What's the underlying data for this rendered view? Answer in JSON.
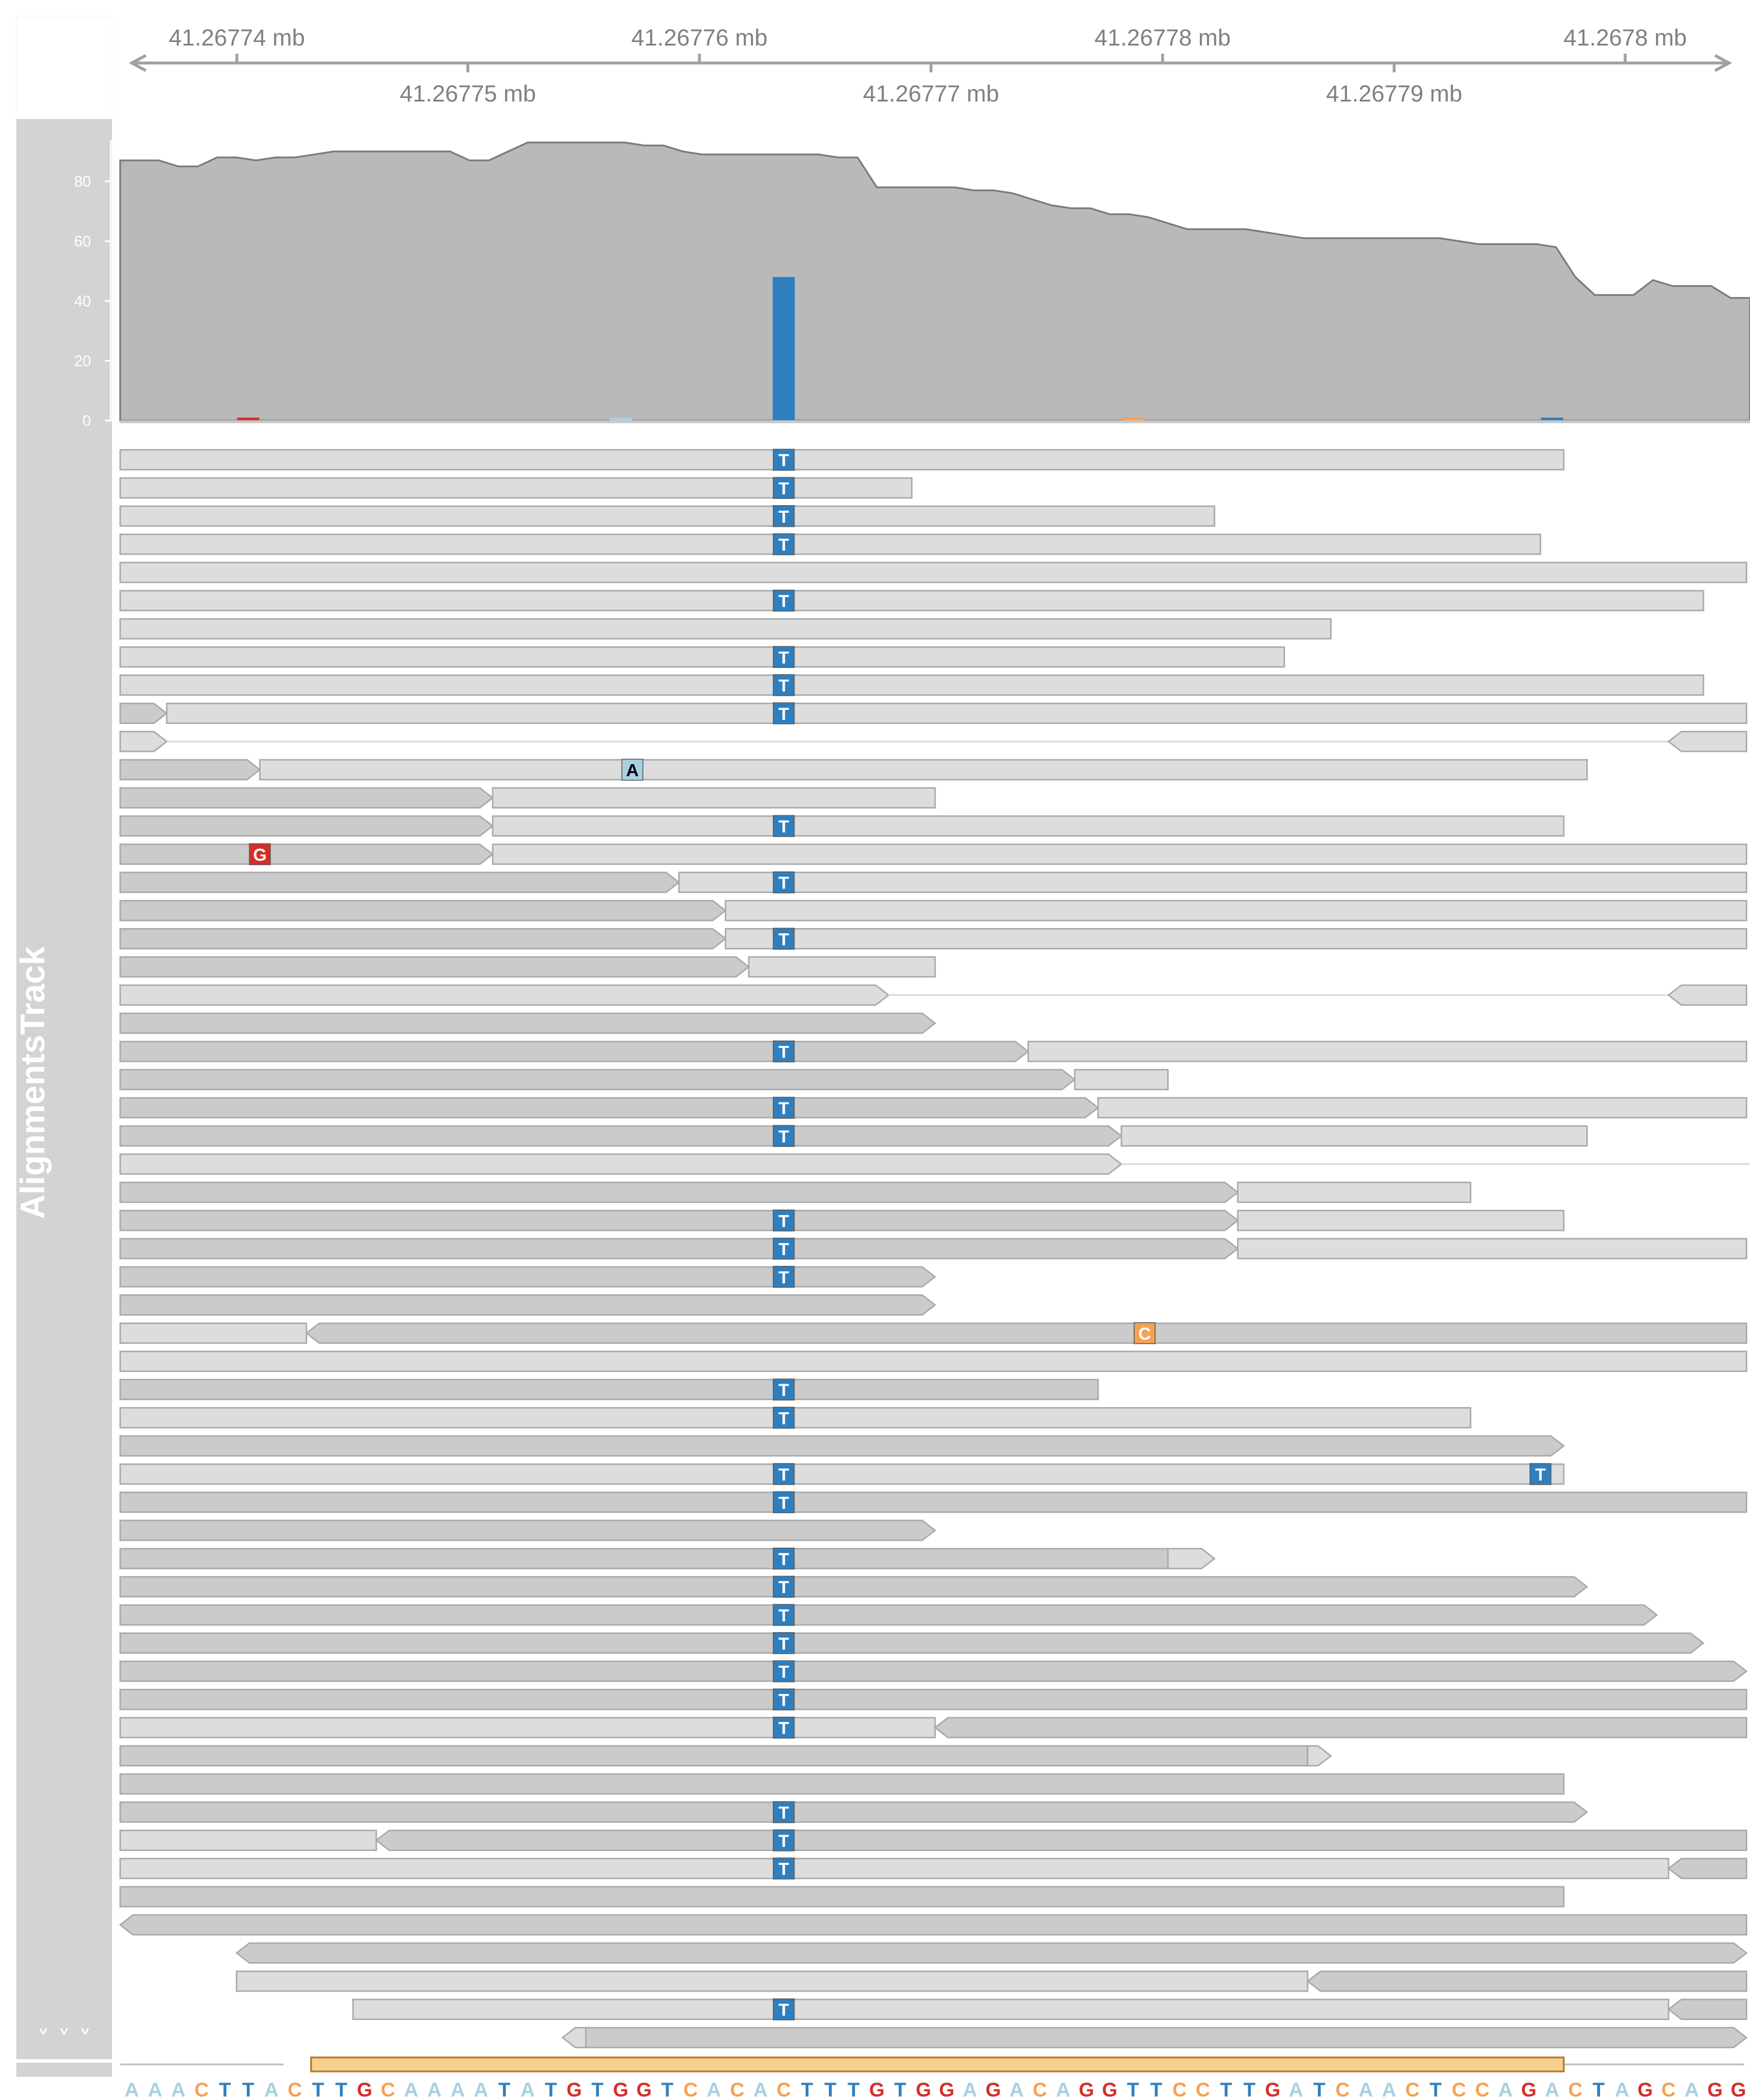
{
  "genome_axis": {
    "ticks_top": [
      "41.26774 mb",
      "41.26776 mb",
      "41.26778 mb",
      "41.2678 mb"
    ],
    "ticks_bottom": [
      "41.26775 mb",
      "41.26777 mb",
      "41.26779 mb"
    ]
  },
  "track_panel": {
    "title": "AlignmentsTrack",
    "expand_label": "˅ ˅ ˅"
  },
  "coverage": {
    "y_ticks": [
      "0",
      "20",
      "40",
      "60",
      "80"
    ],
    "ylim": [
      0,
      95
    ],
    "profile": [
      87,
      87,
      87,
      85,
      85,
      88,
      88,
      87,
      88,
      88,
      89,
      90,
      90,
      90,
      90,
      90,
      90,
      90,
      87,
      87,
      90,
      93,
      93,
      93,
      93,
      93,
      93,
      92,
      92,
      90,
      89,
      89,
      89,
      89,
      89,
      89,
      89,
      88,
      88,
      78,
      78,
      78,
      78,
      78,
      77,
      77,
      76,
      74,
      72,
      71,
      71,
      69,
      69,
      68,
      66,
      64,
      64,
      64,
      64,
      63,
      62,
      61,
      61,
      61,
      61,
      61,
      61,
      61,
      61,
      60,
      59,
      59,
      59,
      59,
      58,
      48,
      42,
      42,
      42,
      47,
      45,
      45,
      45,
      41,
      41
    ],
    "mismatch_bars": [
      {
        "pos": 28,
        "height": 48,
        "color": "#2f7fbf",
        "base": "T"
      },
      {
        "pos": 5,
        "height": 1,
        "color": "#d42e28",
        "base": "G"
      },
      {
        "pos": 21,
        "height": 1,
        "color": "#a8d0e2",
        "base": "A"
      },
      {
        "pos": 43,
        "height": 1,
        "color": "#f5a153",
        "base": "C"
      },
      {
        "pos": 61,
        "height": 1,
        "color": "#2f7fbf",
        "base": "T"
      }
    ]
  },
  "alignments": {
    "rows": [
      [
        {
          "s": 0,
          "e": 62,
          "dir": "n",
          "mm": [
            [
              28,
              "T"
            ]
          ]
        }
      ],
      [
        {
          "s": 0,
          "e": 34,
          "dir": "n",
          "mm": [
            [
              28,
              "T"
            ]
          ]
        }
      ],
      [
        {
          "s": 0,
          "e": 47,
          "dir": "n",
          "mm": [
            [
              28,
              "T"
            ]
          ]
        }
      ],
      [
        {
          "s": 0,
          "e": 61,
          "dir": "n",
          "mm": [
            [
              28,
              "T"
            ]
          ]
        }
      ],
      [
        {
          "s": 0,
          "e": 70,
          "dir": "n",
          "mm": []
        }
      ],
      [
        {
          "s": 0,
          "e": 68,
          "dir": "n",
          "mm": [
            [
              28,
              "T"
            ]
          ]
        }
      ],
      [
        {
          "s": 0,
          "e": 52,
          "dir": "n",
          "mm": []
        }
      ],
      [
        {
          "s": 0,
          "e": 50,
          "dir": "n",
          "mm": [
            [
              28,
              "T"
            ]
          ]
        }
      ],
      [
        {
          "s": 0,
          "e": 68,
          "dir": "n",
          "mm": [
            [
              28,
              "T"
            ]
          ]
        }
      ],
      [
        {
          "s": 0,
          "e": 2,
          "dir": "r",
          "shade": "d",
          "mm": []
        },
        {
          "s": 2,
          "e": 70,
          "dir": "n",
          "mm": [
            [
              28,
              "T"
            ]
          ]
        }
      ],
      [
        {
          "s": 0,
          "e": 2,
          "dir": "r",
          "mm": []
        },
        {
          "gap": [
            2,
            66.5
          ]
        },
        {
          "s": 66.5,
          "e": 70,
          "dir": "l",
          "mm": []
        }
      ],
      [
        {
          "s": 0,
          "e": 6,
          "dir": "r",
          "shade": "d",
          "mm": []
        },
        {
          "s": 6,
          "e": 63,
          "dir": "n",
          "mm": [
            [
              21.5,
              "A"
            ]
          ]
        }
      ],
      [
        {
          "s": 0,
          "e": 16,
          "dir": "r",
          "shade": "d",
          "mm": []
        },
        {
          "s": 16,
          "e": 35,
          "dir": "n",
          "mm": []
        }
      ],
      [
        {
          "s": 0,
          "e": 16,
          "dir": "r",
          "shade": "d",
          "mm": []
        },
        {
          "s": 16,
          "e": 62,
          "dir": "n",
          "mm": [
            [
              28,
              "T"
            ]
          ]
        }
      ],
      [
        {
          "s": 0,
          "e": 16,
          "dir": "r",
          "shade": "d",
          "mm": [
            [
              5.5,
              "G"
            ]
          ]
        },
        {
          "s": 16,
          "e": 70,
          "dir": "n",
          "mm": []
        }
      ],
      [
        {
          "s": 0,
          "e": 24,
          "dir": "r",
          "shade": "d",
          "mm": []
        },
        {
          "s": 24,
          "e": 70,
          "dir": "n",
          "mm": [
            [
              28,
              "T"
            ]
          ]
        }
      ],
      [
        {
          "s": 0,
          "e": 26,
          "dir": "r",
          "shade": "d",
          "mm": []
        },
        {
          "s": 26,
          "e": 70,
          "dir": "n",
          "mm": []
        }
      ],
      [
        {
          "s": 0,
          "e": 26,
          "dir": "r",
          "shade": "d",
          "mm": []
        },
        {
          "s": 26,
          "e": 70,
          "dir": "n",
          "mm": [
            [
              28,
              "T"
            ]
          ]
        }
      ],
      [
        {
          "s": 0,
          "e": 27,
          "dir": "r",
          "shade": "d",
          "mm": []
        },
        {
          "s": 27,
          "e": 35,
          "dir": "n",
          "mm": []
        }
      ],
      [
        {
          "s": 0,
          "e": 33,
          "dir": "r",
          "mm": []
        },
        {
          "gap": [
            33,
            66.5
          ]
        },
        {
          "s": 66.5,
          "e": 70,
          "dir": "l",
          "mm": []
        }
      ],
      [
        {
          "s": 0,
          "e": 35,
          "dir": "r",
          "shade": "d",
          "mm": []
        }
      ],
      [
        {
          "s": 0,
          "e": 39,
          "dir": "r",
          "shade": "d",
          "mm": [
            [
              28,
              "T"
            ]
          ]
        },
        {
          "s": 39,
          "e": 70,
          "dir": "n",
          "mm": []
        }
      ],
      [
        {
          "s": 0,
          "e": 41,
          "dir": "r",
          "shade": "d",
          "mm": []
        },
        {
          "s": 41,
          "e": 45,
          "dir": "n",
          "mm": []
        }
      ],
      [
        {
          "s": 0,
          "e": 42,
          "dir": "r",
          "shade": "d",
          "mm": [
            [
              28,
              "T"
            ]
          ]
        },
        {
          "s": 42,
          "e": 70,
          "dir": "n",
          "mm": []
        }
      ],
      [
        {
          "s": 0,
          "e": 43,
          "dir": "r",
          "shade": "d",
          "mm": [
            [
              28,
              "T"
            ]
          ]
        },
        {
          "s": 43,
          "e": 63,
          "dir": "n",
          "mm": []
        }
      ],
      [
        {
          "s": 0,
          "e": 43,
          "dir": "r",
          "mm": []
        },
        {
          "gap": [
            43,
            70
          ]
        }
      ],
      [
        {
          "s": 0,
          "e": 48,
          "dir": "r",
          "shade": "d",
          "mm": []
        },
        {
          "s": 48,
          "e": 58,
          "dir": "n",
          "mm": []
        }
      ],
      [
        {
          "s": 0,
          "e": 48,
          "dir": "r",
          "shade": "d",
          "mm": [
            [
              28,
              "T"
            ]
          ]
        },
        {
          "s": 48,
          "e": 62,
          "dir": "n",
          "mm": []
        }
      ],
      [
        {
          "s": 0,
          "e": 48,
          "dir": "r",
          "shade": "d",
          "mm": [
            [
              28,
              "T"
            ]
          ]
        },
        {
          "s": 48,
          "e": 70,
          "dir": "n",
          "mm": []
        }
      ],
      [
        {
          "s": 0,
          "e": 35,
          "dir": "r",
          "shade": "d",
          "mm": [
            [
              28,
              "T"
            ]
          ]
        }
      ],
      [
        {
          "s": 0,
          "e": 35,
          "dir": "r",
          "shade": "d",
          "mm": []
        }
      ],
      [
        {
          "s": 0,
          "e": 8,
          "dir": "n",
          "mm": []
        },
        {
          "s": 8,
          "e": 70,
          "dir": "l",
          "shade": "d",
          "mm": [
            [
              43.5,
              "C"
            ]
          ]
        }
      ],
      [
        {
          "s": 0,
          "e": 70,
          "dir": "n",
          "mm": []
        }
      ],
      [
        {
          "s": 0,
          "e": 42,
          "dir": "n",
          "shade": "d",
          "mm": [
            [
              28,
              "T"
            ]
          ]
        }
      ],
      [
        {
          "s": 0,
          "e": 58,
          "dir": "n",
          "mm": [
            [
              28,
              "T"
            ]
          ]
        }
      ],
      [
        {
          "s": 0,
          "e": 62,
          "dir": "r",
          "shade": "d",
          "mm": []
        }
      ],
      [
        {
          "s": 0,
          "e": 62,
          "dir": "n",
          "mm": [
            [
              28,
              "T"
            ],
            [
              60.5,
              "T"
            ]
          ]
        }
      ],
      [
        {
          "s": 0,
          "e": 70,
          "dir": "n",
          "shade": "d",
          "mm": [
            [
              28,
              "T"
            ]
          ]
        }
      ],
      [
        {
          "s": 0,
          "e": 35,
          "dir": "r",
          "shade": "d",
          "mm": []
        }
      ],
      [
        {
          "s": 0,
          "e": 45,
          "dir": "n",
          "shade": "d",
          "mm": [
            [
              28,
              "T"
            ]
          ]
        },
        {
          "s": 45,
          "e": 47,
          "dir": "r",
          "mm": []
        }
      ],
      [
        {
          "s": 0,
          "e": 63,
          "dir": "r",
          "shade": "d",
          "mm": [
            [
              28,
              "T"
            ]
          ]
        }
      ],
      [
        {
          "s": 0,
          "e": 66,
          "dir": "r",
          "shade": "d",
          "mm": [
            [
              28,
              "T"
            ]
          ]
        }
      ],
      [
        {
          "s": 0,
          "e": 68,
          "dir": "r",
          "shade": "d",
          "mm": [
            [
              28,
              "T"
            ]
          ]
        }
      ],
      [
        {
          "s": 0,
          "e": 70,
          "dir": "r",
          "shade": "d",
          "mm": [
            [
              28,
              "T"
            ]
          ]
        }
      ],
      [
        {
          "s": 0,
          "e": 70,
          "dir": "n",
          "shade": "d",
          "mm": [
            [
              28,
              "T"
            ]
          ]
        }
      ],
      [
        {
          "s": 0,
          "e": 35,
          "dir": "n",
          "mm": [
            [
              28,
              "T"
            ]
          ]
        },
        {
          "s": 35,
          "e": 70,
          "dir": "l",
          "shade": "d",
          "mm": []
        }
      ],
      [
        {
          "s": 0,
          "e": 51,
          "dir": "n",
          "shade": "d",
          "mm": []
        },
        {
          "s": 51,
          "e": 52,
          "dir": "r",
          "mm": []
        }
      ],
      [
        {
          "s": 0,
          "e": 62,
          "dir": "n",
          "shade": "d",
          "mm": []
        }
      ],
      [
        {
          "s": 0,
          "e": 63,
          "dir": "r",
          "shade": "d",
          "mm": [
            [
              28,
              "T"
            ]
          ]
        }
      ],
      [
        {
          "s": 0,
          "e": 11,
          "dir": "n",
          "mm": []
        },
        {
          "s": 11,
          "e": 70,
          "dir": "l",
          "shade": "d",
          "mm": [
            [
              28,
              "T"
            ]
          ]
        }
      ],
      [
        {
          "s": 0,
          "e": 66.5,
          "dir": "n",
          "mm": [
            [
              28,
              "T"
            ]
          ]
        },
        {
          "s": 66.5,
          "e": 70,
          "dir": "l",
          "shade": "d",
          "mm": []
        }
      ],
      [
        {
          "s": 0,
          "e": 62,
          "dir": "n",
          "shade": "d",
          "mm": []
        }
      ],
      [
        {
          "s": 0,
          "e": 70,
          "dir": "l",
          "shade": "d",
          "mm": []
        }
      ],
      [
        {
          "s": 5,
          "e": 70,
          "dir": "b",
          "shade": "d",
          "mm": []
        }
      ],
      [
        {
          "s": 5,
          "e": 51,
          "dir": "n",
          "mm": []
        },
        {
          "s": 51,
          "e": 70,
          "dir": "l",
          "shade": "d",
          "mm": []
        }
      ],
      [
        {
          "s": 10,
          "e": 66.5,
          "dir": "n",
          "mm": [
            [
              28,
              "T"
            ]
          ]
        },
        {
          "s": 66.5,
          "e": 70,
          "dir": "l",
          "shade": "d",
          "mm": []
        }
      ],
      [
        {
          "s": 19,
          "e": 20,
          "dir": "l",
          "mm": []
        },
        {
          "s": 20,
          "e": 70,
          "dir": "r",
          "shade": "d",
          "mm": []
        }
      ]
    ]
  },
  "sequence": {
    "bases": "AAACTTACTTGCAAAATATGTGGTCACACTTTGTGGAGACAGGTTCCTTGATCAACTCCAGACTAGCAGG"
  },
  "colors": {
    "A": "#a8d0e2",
    "C": "#f5a153",
    "G": "#d42e28",
    "T": "#2f7fbf",
    "coverage_fill": "#b9b9b9",
    "coverage_line": "#7a7a7a",
    "panel_bg": "#d3d3d3",
    "read_light": "#dddddd",
    "read_dark": "#cbcbcb",
    "gene_fill": "#f7d08e"
  },
  "annotation_track": {
    "feature_range": [
      8,
      62
    ]
  }
}
